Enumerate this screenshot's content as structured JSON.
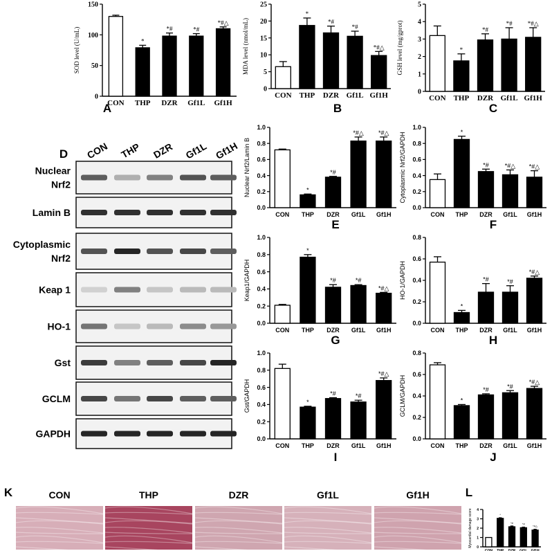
{
  "categories": [
    "CON",
    "THP",
    "DZR",
    "Gf1L",
    "Gf1H"
  ],
  "panel_letters": [
    "A",
    "B",
    "C",
    "D",
    "E",
    "F",
    "G",
    "H",
    "I",
    "J",
    "K",
    "L"
  ],
  "western_blot": {
    "lanes": [
      "CON",
      "THP",
      "DZR",
      "Gf1L",
      "Gf1H"
    ],
    "rows": [
      "Nuclear\nNrf2",
      "Lamin B",
      "Cytoplasmic\nNrf2",
      "Keap 1",
      "HO-1",
      "Gst",
      "GCLM",
      "GAPDH"
    ]
  },
  "histology": {
    "labels": [
      "CON",
      "THP",
      "DZR",
      "Gf1L",
      "Gf1H"
    ]
  },
  "chart_data": [
    {
      "id": "A",
      "type": "bar",
      "categories": [
        "CON",
        "THP",
        "DZR",
        "Gf1L",
        "Gf1H"
      ],
      "values": [
        130,
        79,
        98,
        98,
        110
      ],
      "errors": [
        2,
        4,
        5,
        4,
        3
      ],
      "sig": [
        "",
        "*",
        "*#",
        "*#",
        "*#△"
      ],
      "ylabel": "SOD level (U/mL)",
      "ylim": [
        0,
        150
      ],
      "yticks": [
        "0",
        "50",
        "100",
        "150"
      ]
    },
    {
      "id": "B",
      "type": "bar",
      "categories": [
        "CON",
        "THP",
        "DZR",
        "Gf1L",
        "Gf1H"
      ],
      "values": [
        6.5,
        18.7,
        16.5,
        15.5,
        9.8
      ],
      "errors": [
        1.5,
        2.2,
        2.0,
        1.5,
        1.2
      ],
      "sig": [
        "",
        "*",
        "*#",
        "*#",
        "*#△"
      ],
      "ylabel": "MDA level (nmol/mL)",
      "ylim": [
        0,
        25
      ],
      "yticks": [
        "0",
        "5",
        "10",
        "15",
        "20",
        "25"
      ]
    },
    {
      "id": "C",
      "type": "bar",
      "categories": [
        "CON",
        "THP",
        "DZR",
        "Gf1L",
        "Gf1H"
      ],
      "values": [
        3.2,
        1.75,
        2.95,
        3.0,
        3.1
      ],
      "errors": [
        0.55,
        0.4,
        0.35,
        0.65,
        0.55
      ],
      "sig": [
        "",
        "*",
        "*#",
        "*#",
        "*#△"
      ],
      "ylabel": "GSH level (mg/gprot)",
      "ylim": [
        0,
        5
      ],
      "yticks": [
        "0",
        "1",
        "2",
        "3",
        "4",
        "5"
      ]
    },
    {
      "id": "E",
      "type": "bar",
      "categories": [
        "CON",
        "THP",
        "DZR",
        "Gf1L",
        "Gf1H"
      ],
      "values": [
        0.72,
        0.16,
        0.38,
        0.83,
        0.83
      ],
      "errors": [
        0.01,
        0.01,
        0.01,
        0.05,
        0.05
      ],
      "sig": [
        "",
        "*",
        "*#",
        "*#△",
        "*#△"
      ],
      "ylabel": "Nuclear Nrf2/Lamin B",
      "ylim": [
        0,
        1.0
      ],
      "yticks": [
        "0.0",
        "0.2",
        "0.4",
        "0.6",
        "0.8",
        "1.0"
      ]
    },
    {
      "id": "F",
      "type": "bar",
      "categories": [
        "CON",
        "THP",
        "DZR",
        "Gf1L",
        "Gf1H"
      ],
      "values": [
        0.35,
        0.85,
        0.45,
        0.41,
        0.38
      ],
      "errors": [
        0.07,
        0.04,
        0.03,
        0.06,
        0.08
      ],
      "sig": [
        "",
        "*",
        "*#",
        "*#△",
        "*#△"
      ],
      "ylabel": "Cytoplasmic Nrf2/GAPDH",
      "ylim": [
        0,
        1.0
      ],
      "yticks": [
        "0.0",
        "0.2",
        "0.4",
        "0.6",
        "0.8",
        "1.0"
      ]
    },
    {
      "id": "G",
      "type": "bar",
      "categories": [
        "CON",
        "THP",
        "DZR",
        "Gf1L",
        "Gf1H"
      ],
      "values": [
        0.21,
        0.77,
        0.42,
        0.44,
        0.35
      ],
      "errors": [
        0.01,
        0.03,
        0.03,
        0.01,
        0.01
      ],
      "sig": [
        "",
        "*",
        "*#",
        "*#",
        "*#△"
      ],
      "ylabel": "Keap1/GAPDH",
      "ylim": [
        0,
        1.0
      ],
      "yticks": [
        "0.0",
        "0.2",
        "0.4",
        "0.6",
        "0.8",
        "1.0"
      ]
    },
    {
      "id": "H",
      "type": "bar",
      "categories": [
        "CON",
        "THP",
        "DZR",
        "Gf1L",
        "Gf1H"
      ],
      "values": [
        0.57,
        0.1,
        0.29,
        0.29,
        0.42
      ],
      "errors": [
        0.05,
        0.02,
        0.08,
        0.06,
        0.02
      ],
      "sig": [
        "",
        "*",
        "*#",
        "*#",
        "*#△"
      ],
      "ylabel": "HO-1/GAPDH",
      "ylim": [
        0,
        0.8
      ],
      "yticks": [
        "0.0",
        "0.2",
        "0.4",
        "0.6",
        "0.8"
      ]
    },
    {
      "id": "I",
      "type": "bar",
      "categories": [
        "CON",
        "THP",
        "DZR",
        "Gf1L",
        "Gf1H"
      ],
      "values": [
        0.82,
        0.37,
        0.47,
        0.43,
        0.68
      ],
      "errors": [
        0.05,
        0.01,
        0.01,
        0.02,
        0.03
      ],
      "sig": [
        "",
        "*",
        "*#",
        "*#",
        "*#△"
      ],
      "ylabel": "Gst/GAPDH",
      "ylim": [
        0,
        1.0
      ],
      "yticks": [
        "0.0",
        "0.2",
        "0.4",
        "0.6",
        "0.8",
        "1.0"
      ]
    },
    {
      "id": "J",
      "type": "bar",
      "categories": [
        "CON",
        "THP",
        "DZR",
        "Gf1L",
        "Gf1H"
      ],
      "values": [
        0.69,
        0.31,
        0.41,
        0.43,
        0.47
      ],
      "errors": [
        0.02,
        0.01,
        0.01,
        0.02,
        0.02
      ],
      "sig": [
        "",
        "*",
        "*#",
        "*#",
        "*#△"
      ],
      "ylabel": "GCLM/GAPDH",
      "ylim": [
        0,
        0.8
      ],
      "yticks": [
        "0.0",
        "0.2",
        "0.4",
        "0.6",
        "0.8"
      ]
    },
    {
      "id": "L",
      "type": "bar",
      "categories": [
        "CON",
        "THP",
        "DZR",
        "Gf1L",
        "Gf1H"
      ],
      "values": [
        1.0,
        3.05,
        2.15,
        2.05,
        1.8
      ],
      "errors": [
        0,
        0.06,
        0.08,
        0.06,
        0.08
      ],
      "sig": [
        "",
        "*",
        "*#",
        "*#",
        "*#△"
      ],
      "ylabel": "Myocardial damage score",
      "ylim": [
        0,
        4
      ],
      "yticks": [
        "0",
        "1",
        "2",
        "3",
        "4"
      ]
    }
  ]
}
